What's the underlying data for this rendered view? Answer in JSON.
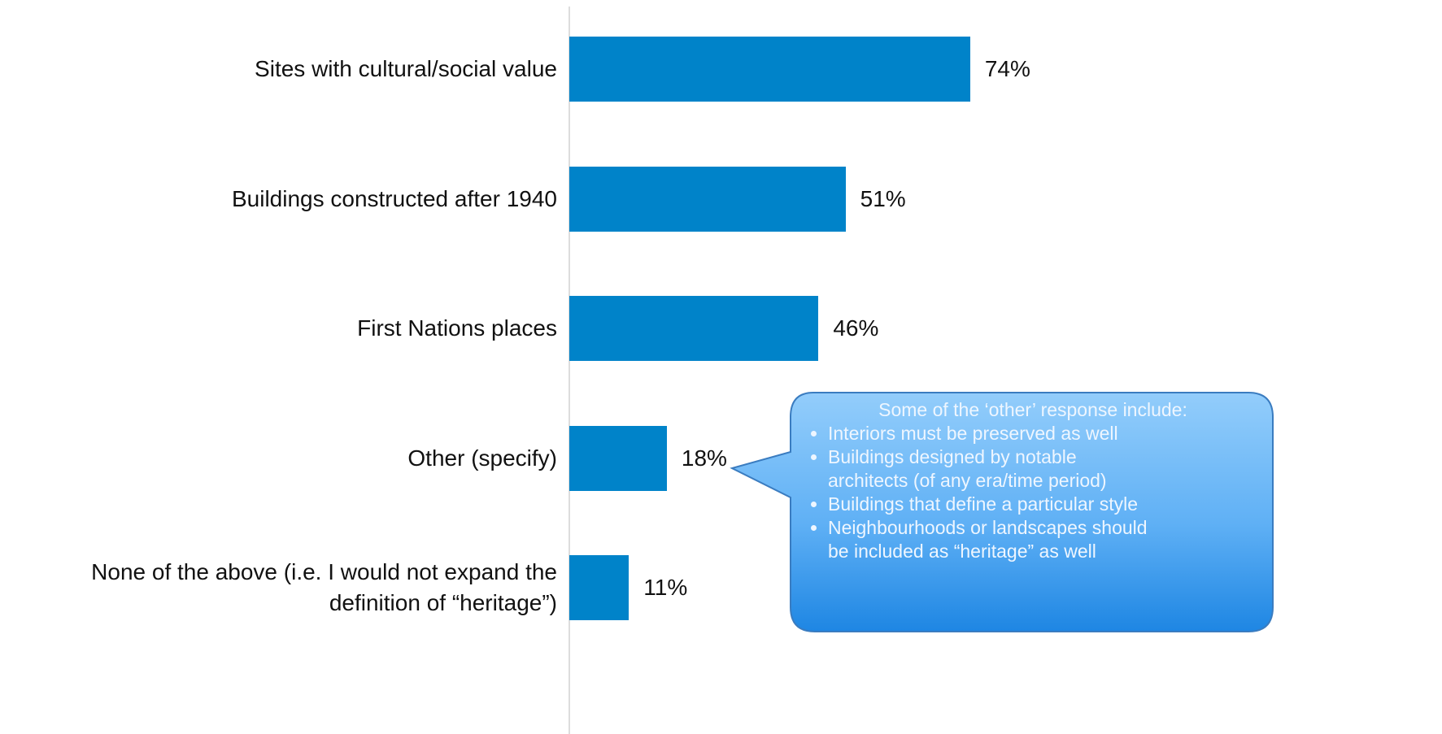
{
  "chart_data": {
    "type": "bar",
    "orientation": "horizontal",
    "categories": [
      "Sites with cultural/social value",
      "Buildings constructed after 1940",
      "First Nations places",
      "Other (specify)",
      "None of the above (i.e. I would not expand the\ndefinition of “heritage”)"
    ],
    "values": [
      74,
      51,
      46,
      18,
      11
    ],
    "value_labels": [
      "74%",
      "51%",
      "46%",
      "18%",
      "11%"
    ],
    "color": "#0083c9",
    "xlim": [
      0,
      100
    ],
    "annotation": {
      "title": "Some of the ‘other’ response include:",
      "items": [
        "Interiors must be preserved as well",
        "Buildings designed by notable\narchitects (of any era/time period)",
        "Buildings that define a particular style",
        "Neighbourhoods or landscapes should\nbe included as “heritage” as well"
      ]
    }
  }
}
